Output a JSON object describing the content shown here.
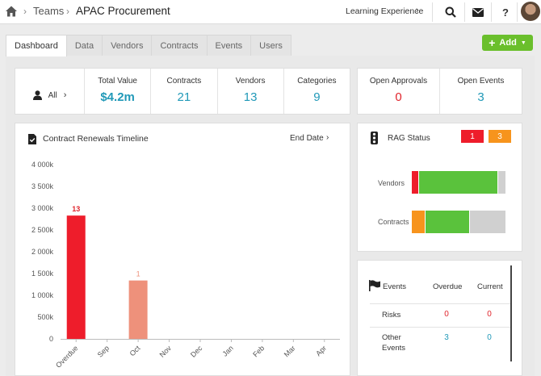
{
  "breadcrumb": {
    "parent": "Teams",
    "current": "APAC Procurement"
  },
  "header": {
    "learning": "Learning Experience",
    "help": "?"
  },
  "tabs": [
    {
      "label": "Dashboard"
    },
    {
      "label": "Data"
    },
    {
      "label": "Vendors"
    },
    {
      "label": "Contracts"
    },
    {
      "label": "Events"
    },
    {
      "label": "Users"
    }
  ],
  "add_button": {
    "label": "Add"
  },
  "summary": {
    "filter_label": "All",
    "total_value_label": "Total Value",
    "total_value": "$4.2m",
    "contracts_label": "Contracts",
    "contracts": "21",
    "vendors_label": "Vendors",
    "vendors": "13",
    "categories_label": "Categories",
    "categories": "9"
  },
  "approvals": {
    "open_approvals_label": "Open Approvals",
    "open_approvals": "0",
    "open_events_label": "Open Events",
    "open_events": "3"
  },
  "renewals": {
    "title": "Contract Renewals Timeline",
    "sort_label": "End Date"
  },
  "chart_data": {
    "type": "bar",
    "categories": [
      "Overdue",
      "Sep",
      "Oct",
      "Nov",
      "Dec",
      "Jan",
      "Feb",
      "Mar",
      "Apr"
    ],
    "values": [
      2830,
      0,
      1340,
      0,
      0,
      0,
      0,
      0,
      0
    ],
    "data_labels": [
      "13",
      "",
      "1",
      "",
      "",
      "",
      "",
      "",
      ""
    ],
    "yticks": [
      "0",
      "500k",
      "1 000k",
      "1 500k",
      "2 000k",
      "2 500k",
      "3 000k",
      "3 500k",
      "4 000k"
    ],
    "ylim": [
      0,
      4000
    ],
    "colors": [
      "#ee1d2b",
      "#ee1d2b",
      "#ee917b",
      "#ee917b",
      "#ee917b",
      "#ee917b",
      "#ee917b",
      "#ee917b",
      "#ee917b"
    ],
    "label_colors": [
      "#e0242c",
      "#e0242c",
      "#ee917b",
      "#ee917b",
      "#ee917b",
      "#ee917b",
      "#ee917b",
      "#ee917b",
      "#ee917b"
    ]
  },
  "rag": {
    "title": "RAG Status",
    "red_count": "1",
    "amber_count": "3",
    "colors": {
      "red": "#ee1d2b",
      "amber": "#f7941d",
      "green": "#5ac23c",
      "grey": "#d0d0d0"
    },
    "rows": [
      {
        "label": "Vendors",
        "red": 0.077,
        "amber": 0.0,
        "green": 0.846,
        "grey": 0.077
      },
      {
        "label": "Contracts",
        "red": 0.0,
        "amber": 0.143,
        "green": 0.476,
        "grey": 0.381
      }
    ]
  },
  "events": {
    "title": "Events",
    "overdue_label": "Overdue",
    "current_label": "Current",
    "rows": [
      {
        "label": "Risks",
        "overdue": "0",
        "current": "0"
      },
      {
        "label": "Other Events",
        "overdue": "3",
        "current": "0"
      }
    ]
  }
}
